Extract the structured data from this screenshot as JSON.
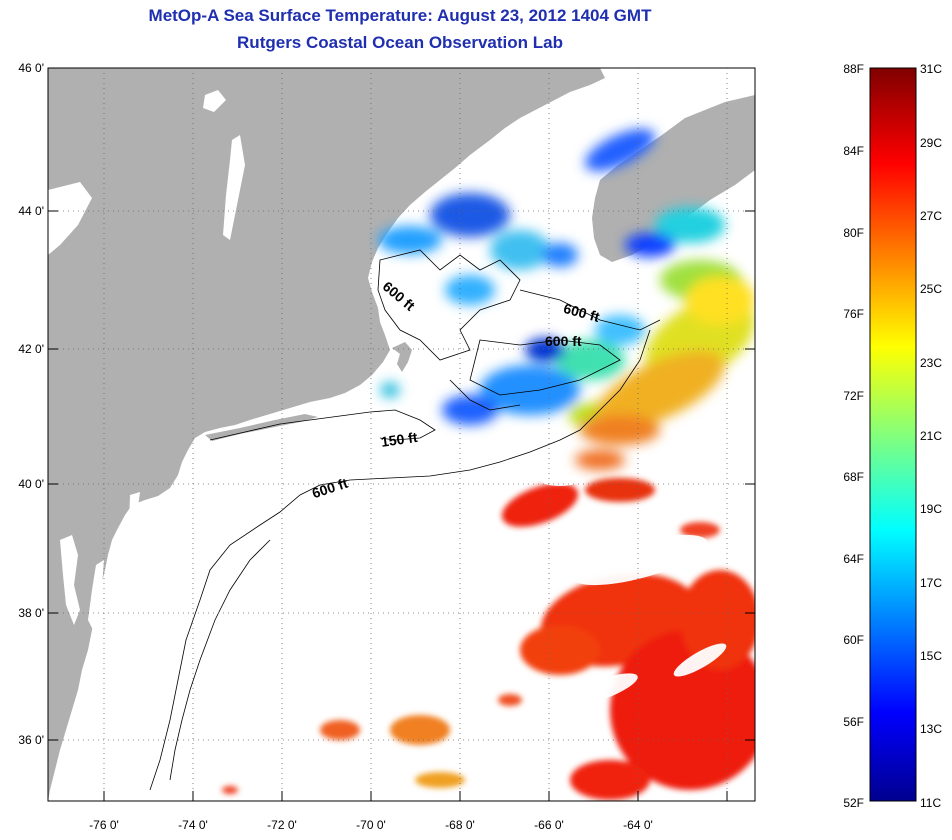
{
  "title": {
    "line1": "MetOp-A Sea Surface Temperature:  August 23, 2012 1404 GMT",
    "line2": "Rutgers Coastal Ocean Observation Lab"
  },
  "map": {
    "lat_ticks": [
      "46 0'",
      "44 0'",
      "42 0'",
      "40 0'",
      "38 0'",
      "36 0'"
    ],
    "lon_ticks": [
      "-76 0'",
      "-74 0'",
      "-72 0'",
      "-70 0'",
      "-68 0'",
      "-66 0'",
      "-64 0'"
    ],
    "contours": [
      "600 ft",
      "600 ft",
      "600 ft",
      "150 ft",
      "600 ft"
    ],
    "colors": {
      "land": "#b0b0b0",
      "no_data": "#ffffff"
    }
  },
  "colorbar": {
    "fahrenheit": [
      "88F",
      "84F",
      "80F",
      "76F",
      "72F",
      "68F",
      "64F",
      "60F",
      "56F",
      "52F"
    ],
    "celsius": [
      "31C",
      "29C",
      "27C",
      "25C",
      "23C",
      "21C",
      "19C",
      "17C",
      "15C",
      "13C",
      "11C"
    ]
  }
}
